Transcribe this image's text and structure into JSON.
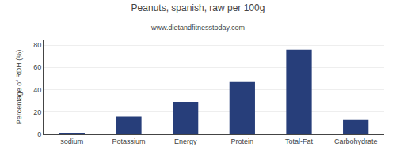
{
  "chart_data": {
    "type": "bar",
    "title": "Peanuts, spanish, raw per 100g",
    "subtitle": "www.dietandfitnesstoday.com",
    "categories": [
      "sodium",
      "Potassium",
      "Energy",
      "Protein",
      "Total-Fat",
      "Carbohydrate"
    ],
    "values": [
      1,
      16,
      29,
      47,
      76,
      13
    ],
    "color": "#273e7a",
    "ylabel": "Percentage of RDH (%)",
    "ylim": [
      0,
      85
    ],
    "yticks": [
      0,
      20,
      40,
      60,
      80
    ],
    "grid": true
  }
}
